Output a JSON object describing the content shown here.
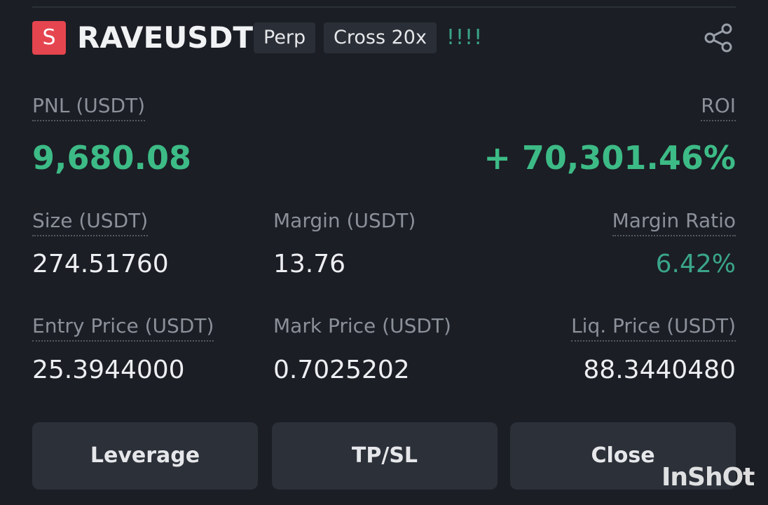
{
  "header": {
    "badge": "S",
    "symbol": "RAVEUSDT",
    "tags": [
      "Perp",
      "Cross 20x"
    ],
    "signal": "!!!!"
  },
  "pnl": {
    "label": "PNL (USDT)",
    "value": "9,680.08"
  },
  "roi": {
    "label": "ROI",
    "value": "+ 70,301.46%"
  },
  "fields": [
    [
      {
        "label": "Size (USDT)",
        "value": "274.51760"
      },
      {
        "label": "Margin (USDT)",
        "value": "13.76"
      },
      {
        "label": "Margin Ratio",
        "value": "6.42%"
      }
    ],
    [
      {
        "label": "Entry Price (USDT)",
        "value": "25.3944000"
      },
      {
        "label": "Mark Price (USDT)",
        "value": "0.7025202"
      },
      {
        "label": "Liq. Price (USDT)",
        "value": "88.3440480"
      }
    ]
  ],
  "buttons": [
    "Leverage",
    "TP/SL",
    "Close"
  ],
  "watermark": "InShOt"
}
